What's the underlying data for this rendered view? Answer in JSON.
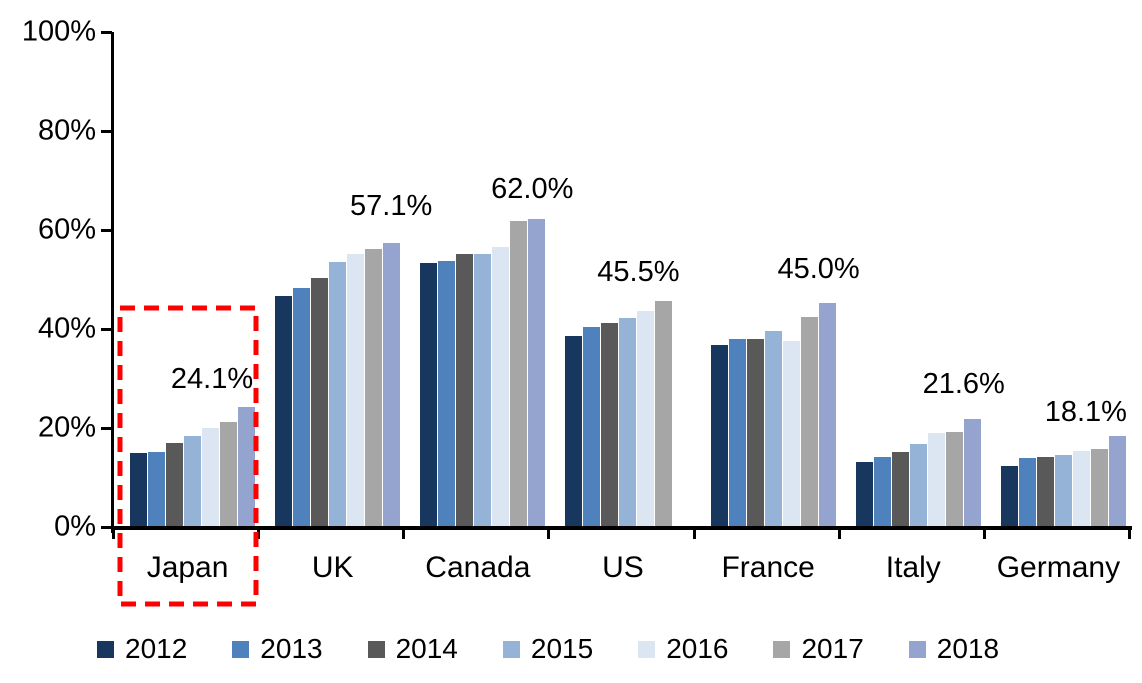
{
  "chart_data": {
    "type": "bar",
    "title": "",
    "xlabel": "",
    "ylabel": "",
    "ylim": [
      0,
      100
    ],
    "grid": false,
    "legend_position": "bottom",
    "categories": [
      "Japan",
      "UK",
      "Canada",
      "US",
      "France",
      "Italy",
      "Germany"
    ],
    "series": [
      {
        "name": "2012",
        "color": "#17375E",
        "values": [
          14.8,
          46.4,
          53.1,
          38.3,
          36.6,
          13.0,
          12.2
        ]
      },
      {
        "name": "2013",
        "color": "#4F81BD",
        "values": [
          15.0,
          48.0,
          53.6,
          40.2,
          37.8,
          13.9,
          13.7
        ]
      },
      {
        "name": "2014",
        "color": "#595959",
        "values": [
          16.7,
          50.1,
          55.0,
          41.0,
          37.7,
          15.0,
          13.9
        ]
      },
      {
        "name": "2015",
        "color": "#95B3D7",
        "values": [
          18.1,
          53.4,
          54.9,
          42.0,
          39.4,
          16.6,
          14.4
        ]
      },
      {
        "name": "2016",
        "color": "#DCE6F2",
        "values": [
          19.8,
          54.9,
          56.3,
          43.4,
          37.4,
          18.7,
          15.2
        ]
      },
      {
        "name": "2017",
        "color": "#A6A6A6",
        "values": [
          21.1,
          56.0,
          61.6,
          45.5,
          42.3,
          18.9,
          15.6
        ]
      },
      {
        "name": "2018",
        "color": "#95A4CF",
        "values": [
          24.1,
          57.1,
          62.0,
          null,
          45.0,
          21.6,
          18.1
        ]
      }
    ],
    "data_labels": [
      "24.1%",
      "57.1%",
      "62.0%",
      "45.5%",
      "45.0%",
      "21.6%",
      "18.1%"
    ],
    "y_ticks": [
      {
        "value": 100,
        "label": "100%"
      },
      {
        "value": 80,
        "label": "80%"
      },
      {
        "value": 60,
        "label": "60%"
      },
      {
        "value": 40,
        "label": "40%"
      },
      {
        "value": 20,
        "label": "20%"
      },
      {
        "value": 0,
        "label": "0%"
      }
    ],
    "annotation": {
      "type": "highlight-box",
      "target": "Japan",
      "style": "dashed",
      "color": "#FF0000"
    }
  }
}
